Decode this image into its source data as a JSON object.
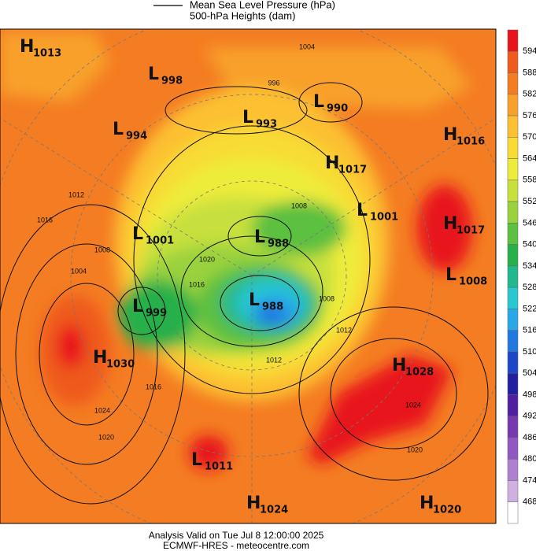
{
  "legend": {
    "line_label": "Mean Sea Level Pressure (hPa)",
    "fill_label": "500-hPa Heights (dam)"
  },
  "centers": [
    {
      "type": "H",
      "value": 1013
    },
    {
      "type": "L",
      "value": 998
    },
    {
      "type": "L",
      "value": 990
    },
    {
      "type": "L",
      "value": 993
    },
    {
      "type": "L",
      "value": 994
    },
    {
      "type": "H",
      "value": 1016
    },
    {
      "type": "H",
      "value": 1017
    },
    {
      "type": "L",
      "value": 1001
    },
    {
      "type": "H",
      "value": 1017
    },
    {
      "type": "L",
      "value": 1001
    },
    {
      "type": "L",
      "value": 988
    },
    {
      "type": "L",
      "value": 1008
    },
    {
      "type": "L",
      "value": 988
    },
    {
      "type": "L",
      "value": 999
    },
    {
      "type": "H",
      "value": 1030
    },
    {
      "type": "H",
      "value": 1028
    },
    {
      "type": "L",
      "value": 1011
    },
    {
      "type": "H",
      "value": 1024
    },
    {
      "type": "H",
      "value": 1020
    }
  ],
  "isobar_labels": [
    1004,
    996,
    1008,
    1020,
    1016,
    1012,
    1016,
    1008,
    1004,
    1024,
    1020,
    1024,
    1020,
    1012,
    1008,
    1016,
    1012
  ],
  "colorbar": {
    "levels": [
      594,
      588,
      582,
      576,
      570,
      564,
      558,
      552,
      546,
      540,
      534,
      528,
      522,
      516,
      510,
      504,
      498,
      492,
      486,
      480,
      474,
      468
    ],
    "colors": [
      "#e8141c",
      "#ef5a1e",
      "#f47c22",
      "#f8a02a",
      "#fcc030",
      "#f8dc34",
      "#eeec3a",
      "#c8e03c",
      "#9ad23c",
      "#5cc040",
      "#28b04a",
      "#20b88c",
      "#28c8d0",
      "#28a8e8",
      "#2078e0",
      "#1a48c8",
      "#2020a0",
      "#5020a0",
      "#7838b0",
      "#9058c0",
      "#b080d0",
      "#d0b0e0",
      "#ffffff"
    ]
  },
  "footer": {
    "line1": "Analysis Valid on Tue Jul  8 12:00:00 2025",
    "line2": "ECMWF-HRES - meteocentre.com"
  }
}
